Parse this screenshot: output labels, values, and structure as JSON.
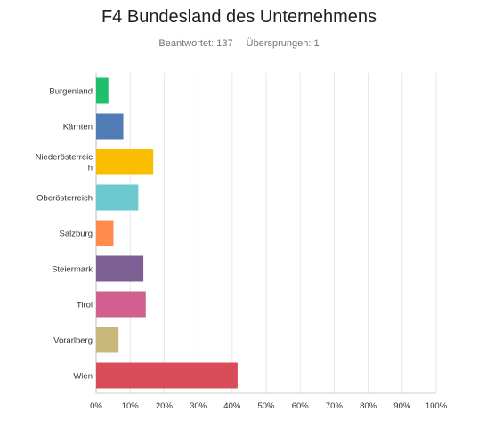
{
  "header": {
    "title": "F4 Bundesland des Unternehmens",
    "answered": "Beantwortet: 137",
    "skipped": "Übersprungen: 1"
  },
  "chart_data": {
    "type": "bar",
    "orientation": "horizontal",
    "title": "F4 Bundesland des Unternehmens",
    "categories": [
      "Burgenland",
      "Kärnten",
      "Niederösterreich",
      "Oberösterreich",
      "Salzburg",
      "Steiermark",
      "Tirol",
      "Vorarlberg",
      "Wien"
    ],
    "category_lines": [
      [
        "Burgenland"
      ],
      [
        "Kärnten"
      ],
      [
        "Niederösterreic",
        "h"
      ],
      [
        "Oberösterreich"
      ],
      [
        "Salzburg"
      ],
      [
        "Steiermark"
      ],
      [
        "Tirol"
      ],
      [
        "Vorarlberg"
      ],
      [
        "Wien"
      ]
    ],
    "values": [
      3.6,
      8.0,
      16.8,
      12.4,
      5.1,
      13.9,
      14.6,
      6.6,
      41.6
    ],
    "colors": [
      "#1fbf6b",
      "#507cb6",
      "#f9be00",
      "#6bc8cd",
      "#ff8b4f",
      "#7d5f93",
      "#d25f90",
      "#c9b87a",
      "#d94d5b"
    ],
    "xlim": [
      0,
      100
    ],
    "xticks": [
      "0%",
      "10%",
      "20%",
      "30%",
      "40%",
      "50%",
      "60%",
      "70%",
      "80%",
      "90%",
      "100%"
    ],
    "grid": true
  }
}
